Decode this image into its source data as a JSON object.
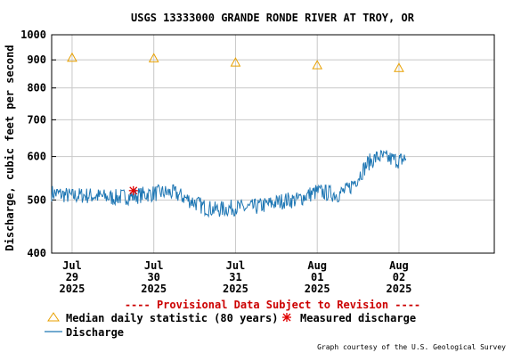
{
  "chart_data": {
    "type": "line",
    "title": "USGS 13333000 GRANDE RONDE RIVER AT TROY, OR",
    "ylabel": "Discharge, cubic feet per second",
    "xlabel": "",
    "y_scale": "log",
    "ylim": [
      400,
      1000
    ],
    "y_ticks": [
      400,
      500,
      600,
      700,
      800,
      900,
      1000
    ],
    "x_range": [
      "2025-07-28 18:00",
      "2025-08-03 04:00"
    ],
    "x_ticks": [
      {
        "date": "2025-07-29",
        "lines": [
          "Jul",
          "29",
          "2025"
        ]
      },
      {
        "date": "2025-07-30",
        "lines": [
          "Jul",
          "30",
          "2025"
        ]
      },
      {
        "date": "2025-07-31",
        "lines": [
          "Jul",
          "31",
          "2025"
        ]
      },
      {
        "date": "2025-08-01",
        "lines": [
          "Aug",
          "01",
          "2025"
        ]
      },
      {
        "date": "2025-08-02",
        "lines": [
          "Aug",
          "02",
          "2025"
        ]
      }
    ],
    "grid": true,
    "provisional_note": "---- Provisional Data Subject to Revision ----",
    "credit": "Graph courtesy of the U.S. Geological Survey",
    "colors": {
      "discharge": "#1f77b4",
      "median": "#e8a000",
      "measured": "#e00000",
      "provisional": "#cc0000",
      "grid": "#c8c8c8"
    },
    "series": [
      {
        "name": "Discharge",
        "style": "line",
        "points": [
          [
            "2025-07-28 18:00",
            515
          ],
          [
            "2025-07-28 21:00",
            512
          ],
          [
            "2025-07-29 00:00",
            508
          ],
          [
            "2025-07-29 03:00",
            510
          ],
          [
            "2025-07-29 06:00",
            509
          ],
          [
            "2025-07-29 09:00",
            507
          ],
          [
            "2025-07-29 12:00",
            505
          ],
          [
            "2025-07-29 15:00",
            507
          ],
          [
            "2025-07-29 18:00",
            508
          ],
          [
            "2025-07-29 21:00",
            512
          ],
          [
            "2025-07-30 00:00",
            514
          ],
          [
            "2025-07-30 03:00",
            516
          ],
          [
            "2025-07-30 06:00",
            515
          ],
          [
            "2025-07-30 09:00",
            505
          ],
          [
            "2025-07-30 12:00",
            495
          ],
          [
            "2025-07-30 15:00",
            485
          ],
          [
            "2025-07-30 18:00",
            480
          ],
          [
            "2025-07-30 21:00",
            482
          ],
          [
            "2025-07-31 00:00",
            485
          ],
          [
            "2025-07-31 03:00",
            483
          ],
          [
            "2025-07-31 06:00",
            486
          ],
          [
            "2025-07-31 09:00",
            490
          ],
          [
            "2025-07-31 12:00",
            495
          ],
          [
            "2025-07-31 15:00",
            500
          ],
          [
            "2025-07-31 18:00",
            500
          ],
          [
            "2025-07-31 21:00",
            510
          ],
          [
            "2025-08-01 00:00",
            518
          ],
          [
            "2025-08-01 03:00",
            515
          ],
          [
            "2025-08-01 06:00",
            512
          ],
          [
            "2025-08-01 09:00",
            522
          ],
          [
            "2025-08-01 12:00",
            550
          ],
          [
            "2025-08-01 15:00",
            585
          ],
          [
            "2025-08-01 18:00",
            600
          ],
          [
            "2025-08-01 21:00",
            595
          ],
          [
            "2025-08-02 00:00",
            590
          ],
          [
            "2025-08-02 02:00",
            595
          ]
        ]
      },
      {
        "name": "Median daily statistic (80 years)",
        "style": "triangle",
        "points": [
          [
            "2025-07-29 00:00",
            908
          ],
          [
            "2025-07-30 00:00",
            906
          ],
          [
            "2025-07-31 00:00",
            890
          ],
          [
            "2025-08-01 00:00",
            880
          ],
          [
            "2025-08-02 00:00",
            870
          ]
        ]
      },
      {
        "name": "Measured discharge",
        "style": "asterisk",
        "points": [
          [
            "2025-07-29 18:00",
            520
          ]
        ]
      }
    ]
  }
}
